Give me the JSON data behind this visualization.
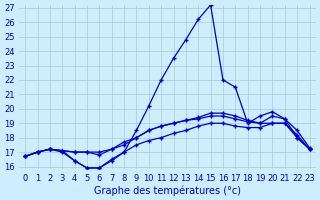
{
  "xlabel": "Graphe des températures (°c)",
  "x_hours": [
    0,
    1,
    2,
    3,
    4,
    5,
    6,
    7,
    8,
    9,
    10,
    11,
    12,
    13,
    14,
    15,
    16,
    17,
    18,
    19,
    20,
    21,
    22,
    23
  ],
  "line1": [
    16.7,
    17.0,
    17.2,
    17.1,
    17.0,
    17.0,
    17.0,
    17.2,
    17.5,
    18.0,
    18.5,
    18.8,
    19.0,
    19.2,
    19.3,
    19.5,
    19.5,
    19.3,
    19.1,
    19.0,
    19.5,
    19.3,
    18.5,
    17.3
  ],
  "line2": [
    16.7,
    17.0,
    17.2,
    17.1,
    16.4,
    15.9,
    15.9,
    16.4,
    17.0,
    18.5,
    20.2,
    22.0,
    23.5,
    24.8,
    26.2,
    27.2,
    22.0,
    21.5,
    19.0,
    19.5,
    19.8,
    19.3,
    18.0,
    17.2
  ],
  "line3": [
    16.7,
    17.0,
    17.2,
    17.1,
    17.0,
    17.0,
    16.8,
    17.2,
    17.7,
    18.0,
    18.5,
    18.8,
    19.0,
    19.2,
    19.4,
    19.7,
    19.7,
    19.5,
    19.2,
    19.0,
    19.0,
    19.0,
    18.0,
    17.2
  ],
  "line4": [
    16.7,
    17.0,
    17.2,
    17.0,
    16.4,
    15.9,
    15.9,
    16.5,
    17.0,
    17.5,
    17.8,
    18.0,
    18.3,
    18.5,
    18.8,
    19.0,
    19.0,
    18.8,
    18.7,
    18.7,
    19.0,
    19.0,
    18.2,
    17.2
  ],
  "line_color": "#0000cd",
  "marker": "+",
  "bg_color": "#cceeff",
  "grid_color": "#aacccc",
  "ylim": [
    16,
    27
  ],
  "yticks": [
    16,
    17,
    18,
    19,
    20,
    21,
    22,
    23,
    24,
    25,
    26,
    27
  ],
  "xticks": [
    0,
    1,
    2,
    3,
    4,
    5,
    6,
    7,
    8,
    9,
    10,
    11,
    12,
    13,
    14,
    15,
    16,
    17,
    18,
    19,
    20,
    21,
    22,
    23
  ],
  "label_fontsize": 7,
  "tick_fontsize": 6
}
